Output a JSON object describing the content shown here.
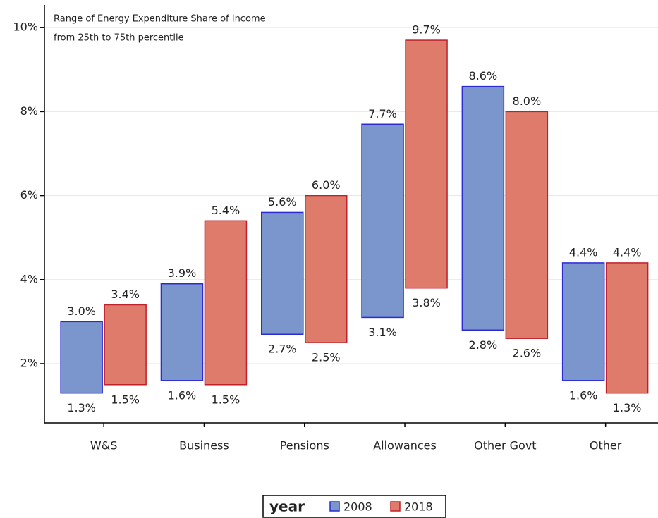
{
  "chart_data": {
    "type": "range-bar",
    "annotation": [
      "Range of Energy Expenditure Share of Income",
      "from 25th to 75th percentile"
    ],
    "categories": [
      "W&S",
      "Business",
      "Pensions",
      "Allowances",
      "Other Govt",
      "Other"
    ],
    "series": [
      {
        "name": "2008",
        "color": "#7b96cc",
        "edge": "#2b2bd6",
        "low": [
          1.3,
          1.6,
          2.7,
          3.1,
          2.8,
          1.6
        ],
        "high": [
          3.0,
          3.9,
          5.6,
          7.7,
          8.6,
          4.4
        ],
        "low_labels": [
          "1.3%",
          "1.6%",
          "2.7%",
          "3.1%",
          "2.8%",
          "1.6%"
        ],
        "high_labels": [
          "3.0%",
          "3.9%",
          "5.6%",
          "7.7%",
          "8.6%",
          "4.4%"
        ]
      },
      {
        "name": "2018",
        "color": "#de7b6b",
        "edge": "#c0202a",
        "low": [
          1.5,
          1.5,
          2.5,
          3.8,
          2.6,
          1.3
        ],
        "high": [
          3.4,
          5.4,
          6.0,
          9.7,
          8.0,
          4.4
        ],
        "low_labels": [
          "1.5%",
          "1.5%",
          "2.5%",
          "3.8%",
          "2.6%",
          "1.3%"
        ],
        "high_labels": [
          "3.4%",
          "5.4%",
          "6.0%",
          "9.7%",
          "8.0%",
          "4.4%"
        ]
      }
    ],
    "ylim": [
      0.59,
      10.54
    ],
    "yticks": [
      {
        "value": 2,
        "label": "2%"
      },
      {
        "value": 4,
        "label": "4%"
      },
      {
        "value": 6,
        "label": "6%"
      },
      {
        "value": 8,
        "label": "8%"
      },
      {
        "value": 10,
        "label": "10%"
      }
    ],
    "grid": true,
    "legend_title": "year",
    "legend_position": "bottom"
  }
}
